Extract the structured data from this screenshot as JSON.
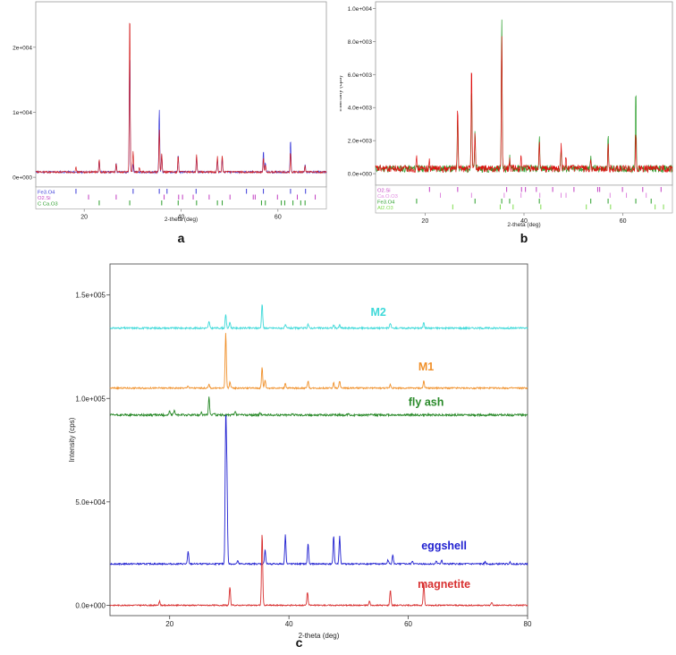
{
  "figure": {
    "panels": [
      "a",
      "b",
      "c"
    ]
  },
  "chart_data": [
    {
      "panel": "a",
      "type": "line",
      "xlabel": "2-theta (deg)",
      "ylabel": "Intensity (cps)",
      "xlim": [
        10,
        70
      ],
      "ylim": [
        -1500,
        27000
      ],
      "xticks": [
        20,
        40,
        60
      ],
      "yticks": [
        {
          "v": 0,
          "label": "0e+000"
        },
        {
          "v": 10000,
          "label": "1e+004"
        },
        {
          "v": 20000,
          "label": "2e+004"
        }
      ],
      "baseline": 800,
      "noise": 150,
      "series": [
        {
          "color": "#3b3bd9",
          "peaks": [
            [
              23.1,
              1900
            ],
            [
              26.6,
              1500
            ],
            [
              29.4,
              19000
            ],
            [
              30.1,
              1200
            ],
            [
              35.5,
              10000
            ],
            [
              36.0,
              2700
            ],
            [
              39.4,
              2600
            ],
            [
              43.2,
              2300
            ],
            [
              47.5,
              2100
            ],
            [
              48.5,
              2100
            ],
            [
              57.0,
              3300
            ],
            [
              57.4,
              1500
            ],
            [
              62.6,
              5200
            ],
            [
              65.6,
              1200
            ]
          ]
        },
        {
          "color": "#d42020",
          "peaks": [
            [
              18.3,
              700
            ],
            [
              23.1,
              1900
            ],
            [
              26.6,
              1300
            ],
            [
              29.4,
              25500
            ],
            [
              30.1,
              3300
            ],
            [
              31.4,
              700
            ],
            [
              35.5,
              6800
            ],
            [
              36.0,
              2900
            ],
            [
              39.4,
              2600
            ],
            [
              43.2,
              2700
            ],
            [
              47.5,
              2400
            ],
            [
              48.5,
              2700
            ],
            [
              57.0,
              2300
            ],
            [
              57.4,
              1300
            ],
            [
              62.6,
              3100
            ],
            [
              65.6,
              900
            ]
          ]
        }
      ],
      "reference_lines": [
        {
          "label": "Fe3.O4",
          "color": "#3b3bd9",
          "positions": [
            18.3,
            30.1,
            35.5,
            37.1,
            43.1,
            53.5,
            57.0,
            62.6,
            65.7
          ]
        },
        {
          "label": "O2.Si",
          "color": "#c23fc2",
          "positions": [
            20.9,
            26.6,
            36.5,
            39.5,
            40.3,
            42.5,
            45.8,
            50.1,
            54.9,
            55.3,
            59.9,
            64.0,
            67.7
          ]
        },
        {
          "label": "C Ca.O3",
          "color": "#2b9e2b",
          "positions": [
            23.1,
            29.4,
            36.0,
            39.4,
            43.2,
            47.5,
            48.5,
            56.6,
            57.4,
            60.7,
            61.4,
            63.1,
            64.7,
            65.6
          ]
        }
      ],
      "caption": "a"
    },
    {
      "panel": "b",
      "type": "line",
      "xlabel": "2-theta (deg)",
      "ylabel": "Intensity (cps)",
      "xlim": [
        10,
        70
      ],
      "ylim": [
        -700,
        10400
      ],
      "xticks": [
        20,
        40,
        60
      ],
      "yticks": [
        {
          "v": 0,
          "label": "0.0e+000"
        },
        {
          "v": 2000,
          "label": "2.0e+003"
        },
        {
          "v": 4000,
          "label": "4.0e+003"
        },
        {
          "v": 6000,
          "label": "6.0e+003"
        },
        {
          "v": 8000,
          "label": "8.0e+003"
        },
        {
          "v": 10000,
          "label": "1.0e+004"
        }
      ],
      "baseline": 300,
      "noise": 220,
      "series": [
        {
          "color": "#2b9e2b",
          "peaks": [
            [
              18.3,
              300
            ],
            [
              26.6,
              3400
            ],
            [
              29.4,
              4900
            ],
            [
              30.1,
              2300
            ],
            [
              35.5,
              9500
            ],
            [
              37.1,
              700
            ],
            [
              43.1,
              2000
            ],
            [
              47.5,
              1300
            ],
            [
              53.5,
              900
            ],
            [
              57.0,
              2000
            ],
            [
              62.6,
              5000
            ]
          ]
        },
        {
          "color": "#e01010",
          "peaks": [
            [
              18.3,
              600
            ],
            [
              20.9,
              500
            ],
            [
              26.6,
              3700
            ],
            [
              29.4,
              6400
            ],
            [
              30.1,
              2200
            ],
            [
              35.5,
              8400
            ],
            [
              37.1,
              500
            ],
            [
              39.4,
              900
            ],
            [
              43.1,
              1700
            ],
            [
              47.5,
              1400
            ],
            [
              48.5,
              900
            ],
            [
              53.5,
              500
            ],
            [
              57.0,
              1600
            ],
            [
              62.6,
              2100
            ]
          ]
        }
      ],
      "reference_lines": [
        {
          "label": "O2.Si",
          "color": "#c23fc2",
          "positions": [
            20.9,
            26.6,
            36.5,
            39.5,
            40.3,
            42.5,
            45.8,
            50.1,
            54.9,
            55.3,
            59.9,
            64.0,
            67.7
          ]
        },
        {
          "label": "Ca.O.O3",
          "color": "#e08ae0",
          "positions": [
            23.1,
            29.4,
            36.0,
            39.4,
            43.2,
            47.5,
            48.5,
            57.4,
            60.7,
            64.7
          ]
        },
        {
          "label": "Fe3.O4",
          "color": "#2b9e2b",
          "positions": [
            18.3,
            30.1,
            35.5,
            37.1,
            43.1,
            53.5,
            57.0,
            62.6,
            65.7
          ]
        },
        {
          "label": "Al2.O3",
          "color": "#7fdc4f",
          "positions": [
            25.6,
            35.2,
            37.8,
            43.4,
            52.6,
            57.5,
            66.5,
            68.2
          ]
        }
      ],
      "caption": "b"
    },
    {
      "panel": "c",
      "type": "line",
      "xlabel": "2-theta (deg)",
      "ylabel": "Intensity (cps)",
      "xlim": [
        10,
        80
      ],
      "ylim": [
        -5000,
        165000
      ],
      "xticks": [
        20,
        40,
        60,
        80
      ],
      "yticks": [
        {
          "v": 0,
          "label": "0.0e+000"
        },
        {
          "v": 50000,
          "label": "5.0e+004"
        },
        {
          "v": 100000,
          "label": "1.0e+005"
        },
        {
          "v": 150000,
          "label": "1.5e+005"
        }
      ],
      "series": [
        {
          "name": "M2",
          "color": "#3ed9d9",
          "offset": 134000,
          "noise": 400,
          "peaks": [
            [
              26.6,
              3300
            ],
            [
              29.4,
              6500
            ],
            [
              30.1,
              3000
            ],
            [
              35.5,
              12000
            ],
            [
              39.4,
              1500
            ],
            [
              43.2,
              2000
            ],
            [
              47.5,
              1500
            ],
            [
              48.5,
              1500
            ],
            [
              57.0,
              2500
            ],
            [
              62.6,
              3000
            ]
          ]
        },
        {
          "name": "M1",
          "color": "#f0902a",
          "offset": 105000,
          "noise": 350,
          "peaks": [
            [
              23.1,
              1200
            ],
            [
              26.6,
              1800
            ],
            [
              29.4,
              27000
            ],
            [
              30.1,
              3000
            ],
            [
              35.5,
              10000
            ],
            [
              36.0,
              4000
            ],
            [
              39.4,
              2500
            ],
            [
              43.2,
              3500
            ],
            [
              47.5,
              2500
            ],
            [
              48.5,
              3500
            ],
            [
              57.0,
              1800
            ],
            [
              62.6,
              3500
            ]
          ]
        },
        {
          "name": "fly ash",
          "color": "#2a8a2a",
          "offset": 92000,
          "noise": 500,
          "peaks": [
            [
              20.0,
              2000
            ],
            [
              20.8,
              2500
            ],
            [
              25.3,
              1500
            ],
            [
              26.6,
              8500
            ],
            [
              27.5,
              1000
            ],
            [
              31.0,
              1500
            ],
            [
              35.2,
              1000
            ],
            [
              40.5,
              700
            ],
            [
              50.0,
              700
            ]
          ]
        },
        {
          "name": "eggshell",
          "color": "#2020d0",
          "offset": 20000,
          "noise": 350,
          "peaks": [
            [
              23.1,
              6000
            ],
            [
              29.4,
              68000
            ],
            [
              29.6,
              40000
            ],
            [
              31.4,
              1500
            ],
            [
              36.0,
              7000
            ],
            [
              39.4,
              14000
            ],
            [
              43.2,
              10000
            ],
            [
              47.5,
              13500
            ],
            [
              48.5,
              13500
            ],
            [
              56.6,
              2000
            ],
            [
              57.4,
              4500
            ],
            [
              60.7,
              1500
            ],
            [
              64.7,
              1500
            ],
            [
              65.6,
              2000
            ],
            [
              72.9,
              1000
            ],
            [
              77.1,
              1000
            ]
          ]
        },
        {
          "name": "magnetite",
          "color": "#d83030",
          "offset": 0,
          "noise": 300,
          "peaks": [
            [
              18.3,
              2000
            ],
            [
              30.1,
              9000
            ],
            [
              35.5,
              35000
            ],
            [
              43.1,
              6500
            ],
            [
              53.5,
              2000
            ],
            [
              57.0,
              7500
            ],
            [
              62.6,
              11000
            ],
            [
              74.0,
              1500
            ]
          ]
        }
      ],
      "caption": "c"
    }
  ]
}
